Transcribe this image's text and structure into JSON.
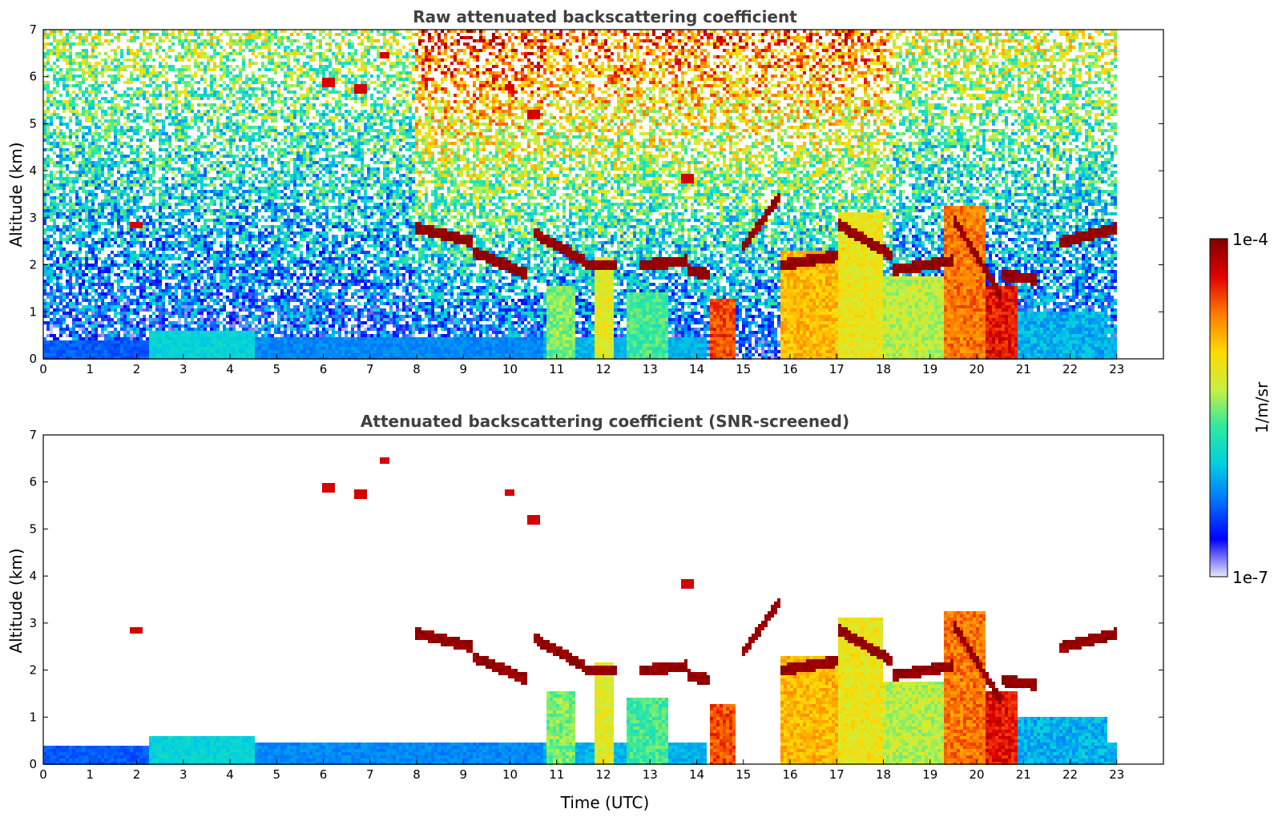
{
  "chart_data": [
    {
      "type": "heatmap",
      "title": "Raw attenuated backscattering coefficient",
      "xlabel": "",
      "ylabel": "Altitude (km)",
      "xlim": [
        0,
        24
      ],
      "ylim": [
        0,
        7
      ],
      "x_ticks": [
        "0",
        "1",
        "2",
        "3",
        "4",
        "5",
        "6",
        "7",
        "8",
        "9",
        "10",
        "11",
        "12",
        "13",
        "14",
        "15",
        "16",
        "17",
        "18",
        "19",
        "20",
        "21",
        "22",
        "23"
      ],
      "y_ticks": [
        "0",
        "1",
        "2",
        "3",
        "4",
        "5",
        "6",
        "7"
      ],
      "data_end_time": 23,
      "background_noise_level": [
        {
          "t0": 0,
          "t1": 8,
          "level": 0.55
        },
        {
          "t0": 8,
          "t1": 10.7,
          "level": 0.85
        },
        {
          "t0": 10.7,
          "t1": 18.2,
          "level": 0.8
        },
        {
          "t0": 18.2,
          "t1": 23,
          "level": 0.6
        }
      ],
      "boundary_layer": [
        {
          "t0": 0,
          "t1": 2.3,
          "top_km": 0.4,
          "level": 0.2
        },
        {
          "t0": 2.3,
          "t1": 4.5,
          "top_km": 0.6,
          "level": 0.35
        },
        {
          "t0": 4.5,
          "t1": 10.7,
          "top_km": 0.45,
          "level": 0.25
        },
        {
          "t0": 10.7,
          "t1": 14.2,
          "top_km": 0.5,
          "level": 0.3
        },
        {
          "t0": 15.8,
          "t1": 23,
          "top_km": 0.5,
          "level": 0.3
        }
      ],
      "aerosol_columns": [
        {
          "t0": 10.8,
          "t1": 11.4,
          "top_km": 1.6,
          "level": 0.5
        },
        {
          "t0": 11.8,
          "t1": 12.2,
          "top_km": 2.2,
          "level": 0.6
        },
        {
          "t0": 12.5,
          "t1": 13.4,
          "top_km": 1.4,
          "level": 0.45
        },
        {
          "t0": 14.3,
          "t1": 14.8,
          "top_km": 1.3,
          "level": 0.82
        },
        {
          "t0": 15.8,
          "t1": 17.0,
          "top_km": 2.3,
          "level": 0.7
        },
        {
          "t0": 17.0,
          "t1": 18.0,
          "top_km": 3.1,
          "level": 0.62
        },
        {
          "t0": 18.0,
          "t1": 19.3,
          "top_km": 1.8,
          "level": 0.55
        },
        {
          "t0": 19.3,
          "t1": 20.2,
          "top_km": 3.3,
          "level": 0.78
        },
        {
          "t0": 20.2,
          "t1": 20.9,
          "top_km": 1.6,
          "level": 0.88
        },
        {
          "t0": 20.9,
          "t1": 22.8,
          "top_km": 1.0,
          "level": 0.3
        }
      ],
      "cloud_layers": [
        {
          "t0": 8.0,
          "t1": 9.2,
          "alt0_km": 2.8,
          "alt1_km": 2.5
        },
        {
          "t0": 9.2,
          "t1": 10.4,
          "alt0_km": 2.3,
          "alt1_km": 1.8
        },
        {
          "t0": 10.5,
          "t1": 11.6,
          "alt0_km": 2.7,
          "alt1_km": 2.1
        },
        {
          "t0": 11.6,
          "t1": 12.3,
          "alt0_km": 2.0,
          "alt1_km": 2.0
        },
        {
          "t0": 12.8,
          "t1": 13.8,
          "alt0_km": 2.0,
          "alt1_km": 2.1
        },
        {
          "t0": 13.8,
          "t1": 14.3,
          "alt0_km": 1.9,
          "alt1_km": 1.8
        },
        {
          "t0": 15.0,
          "t1": 15.8,
          "alt0_km": 2.4,
          "alt1_km": 3.5
        },
        {
          "t0": 15.8,
          "t1": 17.0,
          "alt0_km": 2.0,
          "alt1_km": 2.2
        },
        {
          "t0": 17.0,
          "t1": 18.2,
          "alt0_km": 2.9,
          "alt1_km": 2.2
        },
        {
          "t0": 18.2,
          "t1": 19.5,
          "alt0_km": 1.9,
          "alt1_km": 2.1
        },
        {
          "t0": 19.5,
          "t1": 20.5,
          "alt0_km": 3.0,
          "alt1_km": 1.4
        },
        {
          "t0": 20.5,
          "t1": 21.3,
          "alt0_km": 1.8,
          "alt1_km": 1.7
        },
        {
          "t0": 21.8,
          "t1": 23.0,
          "alt0_km": 2.5,
          "alt1_km": 2.8
        }
      ],
      "high_cloud_spots": [
        {
          "t": 6.1,
          "alt_km": 5.9
        },
        {
          "t": 6.8,
          "alt_km": 5.75
        },
        {
          "t": 7.3,
          "alt_km": 6.45
        },
        {
          "t": 10.0,
          "alt_km": 5.8
        },
        {
          "t": 10.5,
          "alt_km": 5.2
        },
        {
          "t": 13.8,
          "alt_km": 3.85
        },
        {
          "t": 2.0,
          "alt_km": 2.88
        }
      ]
    },
    {
      "type": "heatmap",
      "title": "Attenuated backscattering coefficient (SNR-screened)",
      "xlabel": "Time (UTC)",
      "ylabel": "Altitude (km)",
      "xlim": [
        0,
        24
      ],
      "ylim": [
        0,
        7
      ],
      "x_ticks": [
        "0",
        "1",
        "2",
        "3",
        "4",
        "5",
        "6",
        "7",
        "8",
        "9",
        "10",
        "11",
        "12",
        "13",
        "14",
        "15",
        "16",
        "17",
        "18",
        "19",
        "20",
        "21",
        "22",
        "23"
      ],
      "y_ticks": [
        "0",
        "1",
        "2",
        "3",
        "4",
        "5",
        "6",
        "7"
      ],
      "data_end_time": 23,
      "screened": true
    }
  ],
  "colorbar": {
    "label": "1/m/sr",
    "min_label": "1e-7",
    "max_label": "1e-4",
    "colormap": [
      "#e8e8f8",
      "#0000ff",
      "#0070ff",
      "#00d0e0",
      "#30e8a0",
      "#c8f040",
      "#ffd800",
      "#ff7a00",
      "#e00000",
      "#800000"
    ]
  }
}
